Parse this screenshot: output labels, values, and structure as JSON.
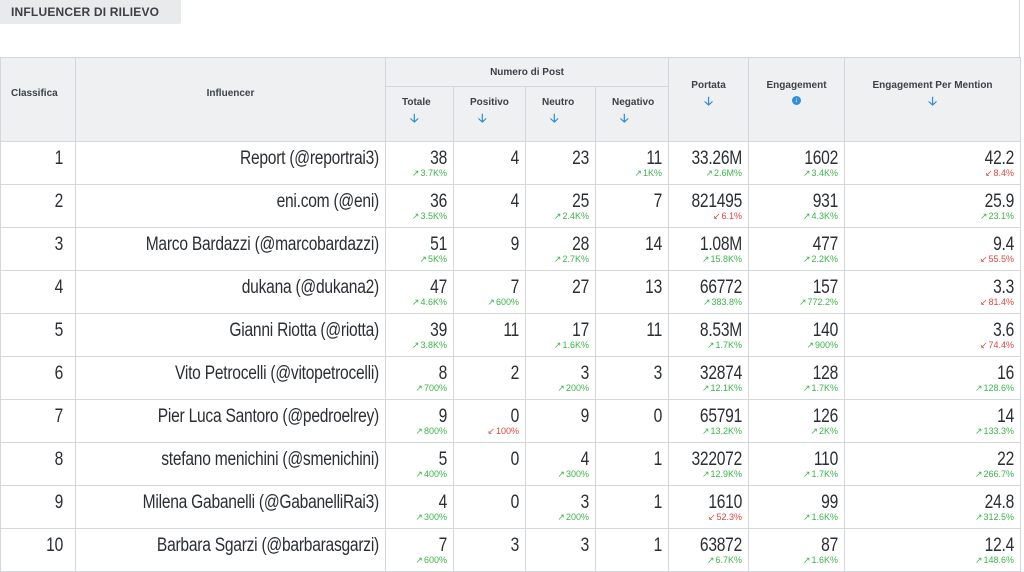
{
  "panel": {
    "title": "INFLUENCER DI RILIEVO"
  },
  "headers": {
    "classifica": "Classifica",
    "influencer": "Influencer",
    "numero_post": "Numero di Post",
    "totale": "Totale",
    "positivo": "Positivo",
    "neutro": "Neutro",
    "negativo": "Negativo",
    "portata": "Portata",
    "engagement": "Engagement",
    "engagement_mention": "Engagement Per Mention"
  },
  "icons": {
    "sort": "arrow-down-icon",
    "sort_active": "circle-arrow-down-icon",
    "up": "trend-up-icon",
    "down": "trend-down-icon"
  },
  "colors": {
    "up": "#3bb54a",
    "down": "#e0463f",
    "sort": "#2f8fd8",
    "header_bg": "#eef0f2"
  },
  "rows": [
    {
      "rank": "1",
      "name": "Report (@reportrai3)",
      "totale": "38",
      "totale_d": "3.7K%",
      "totale_dir": "up",
      "positivo": "4",
      "positivo_d": "",
      "positivo_dir": "",
      "neutro": "23",
      "neutro_d": "",
      "neutro_dir": "",
      "negativo": "11",
      "negativo_d": "1K%",
      "negativo_dir": "up",
      "portata": "33.26M",
      "portata_d": "2.6M%",
      "portata_dir": "up",
      "engagement": "1602",
      "engagement_d": "3.4K%",
      "engagement_dir": "up",
      "epm": "42.2",
      "epm_d": "8.4%",
      "epm_dir": "down"
    },
    {
      "rank": "2",
      "name": "eni.com (@eni)",
      "totale": "36",
      "totale_d": "3.5K%",
      "totale_dir": "up",
      "positivo": "4",
      "positivo_d": "",
      "positivo_dir": "",
      "neutro": "25",
      "neutro_d": "2.4K%",
      "neutro_dir": "up",
      "negativo": "7",
      "negativo_d": "",
      "negativo_dir": "",
      "portata": "821495",
      "portata_d": "6.1%",
      "portata_dir": "down",
      "engagement": "931",
      "engagement_d": "4.3K%",
      "engagement_dir": "up",
      "epm": "25.9",
      "epm_d": "23.1%",
      "epm_dir": "up"
    },
    {
      "rank": "3",
      "name": "Marco Bardazzi (@marcobardazzi)",
      "totale": "51",
      "totale_d": "5K%",
      "totale_dir": "up",
      "positivo": "9",
      "positivo_d": "",
      "positivo_dir": "",
      "neutro": "28",
      "neutro_d": "2.7K%",
      "neutro_dir": "up",
      "negativo": "14",
      "negativo_d": "",
      "negativo_dir": "",
      "portata": "1.08M",
      "portata_d": "15.8K%",
      "portata_dir": "up",
      "engagement": "477",
      "engagement_d": "2.2K%",
      "engagement_dir": "up",
      "epm": "9.4",
      "epm_d": "55.5%",
      "epm_dir": "down"
    },
    {
      "rank": "4",
      "name": "dukana (@dukana2)",
      "totale": "47",
      "totale_d": "4.6K%",
      "totale_dir": "up",
      "positivo": "7",
      "positivo_d": "600%",
      "positivo_dir": "up",
      "neutro": "27",
      "neutro_d": "",
      "neutro_dir": "",
      "negativo": "13",
      "negativo_d": "",
      "negativo_dir": "",
      "portata": "66772",
      "portata_d": "383.8%",
      "portata_dir": "up",
      "engagement": "157",
      "engagement_d": "772.2%",
      "engagement_dir": "up",
      "epm": "3.3",
      "epm_d": "81.4%",
      "epm_dir": "down"
    },
    {
      "rank": "5",
      "name": "Gianni Riotta (@riotta)",
      "totale": "39",
      "totale_d": "3.8K%",
      "totale_dir": "up",
      "positivo": "11",
      "positivo_d": "",
      "positivo_dir": "",
      "neutro": "17",
      "neutro_d": "1.6K%",
      "neutro_dir": "up",
      "negativo": "11",
      "negativo_d": "",
      "negativo_dir": "",
      "portata": "8.53M",
      "portata_d": "1.7K%",
      "portata_dir": "up",
      "engagement": "140",
      "engagement_d": "900%",
      "engagement_dir": "up",
      "epm": "3.6",
      "epm_d": "74.4%",
      "epm_dir": "down"
    },
    {
      "rank": "6",
      "name": "Vito Petrocelli (@vitopetrocelli)",
      "totale": "8",
      "totale_d": "700%",
      "totale_dir": "up",
      "positivo": "2",
      "positivo_d": "",
      "positivo_dir": "",
      "neutro": "3",
      "neutro_d": "200%",
      "neutro_dir": "up",
      "negativo": "3",
      "negativo_d": "",
      "negativo_dir": "",
      "portata": "32874",
      "portata_d": "12.1K%",
      "portata_dir": "up",
      "engagement": "128",
      "engagement_d": "1.7K%",
      "engagement_dir": "up",
      "epm": "16",
      "epm_d": "128.6%",
      "epm_dir": "up"
    },
    {
      "rank": "7",
      "name": "Pier Luca Santoro (@pedroelrey)",
      "totale": "9",
      "totale_d": "800%",
      "totale_dir": "up",
      "positivo": "0",
      "positivo_d": "100%",
      "positivo_dir": "down",
      "neutro": "9",
      "neutro_d": "",
      "neutro_dir": "",
      "negativo": "0",
      "negativo_d": "",
      "negativo_dir": "",
      "portata": "65791",
      "portata_d": "13.2K%",
      "portata_dir": "up",
      "engagement": "126",
      "engagement_d": "2K%",
      "engagement_dir": "up",
      "epm": "14",
      "epm_d": "133.3%",
      "epm_dir": "up"
    },
    {
      "rank": "8",
      "name": "stefano menichini (@smenichini)",
      "totale": "5",
      "totale_d": "400%",
      "totale_dir": "up",
      "positivo": "0",
      "positivo_d": "",
      "positivo_dir": "",
      "neutro": "4",
      "neutro_d": "300%",
      "neutro_dir": "up",
      "negativo": "1",
      "negativo_d": "",
      "negativo_dir": "",
      "portata": "322072",
      "portata_d": "12.9K%",
      "portata_dir": "up",
      "engagement": "110",
      "engagement_d": "1.7K%",
      "engagement_dir": "up",
      "epm": "22",
      "epm_d": "266.7%",
      "epm_dir": "up"
    },
    {
      "rank": "9",
      "name": "Milena Gabanelli (@GabanelliRai3)",
      "totale": "4",
      "totale_d": "300%",
      "totale_dir": "up",
      "positivo": "0",
      "positivo_d": "",
      "positivo_dir": "",
      "neutro": "3",
      "neutro_d": "200%",
      "neutro_dir": "up",
      "negativo": "1",
      "negativo_d": "",
      "negativo_dir": "",
      "portata": "1610",
      "portata_d": "52.3%",
      "portata_dir": "down",
      "engagement": "99",
      "engagement_d": "1.6K%",
      "engagement_dir": "up",
      "epm": "24.8",
      "epm_d": "312.5%",
      "epm_dir": "up"
    },
    {
      "rank": "10",
      "name": "Barbara Sgarzi (@barbarasgarzi)",
      "totale": "7",
      "totale_d": "600%",
      "totale_dir": "up",
      "positivo": "3",
      "positivo_d": "",
      "positivo_dir": "",
      "neutro": "3",
      "neutro_d": "",
      "neutro_dir": "",
      "negativo": "1",
      "negativo_d": "",
      "negativo_dir": "",
      "portata": "63872",
      "portata_d": "6.7K%",
      "portata_dir": "up",
      "engagement": "87",
      "engagement_d": "1.6K%",
      "engagement_dir": "up",
      "epm": "12.4",
      "epm_d": "148.6%",
      "epm_dir": "up"
    }
  ]
}
